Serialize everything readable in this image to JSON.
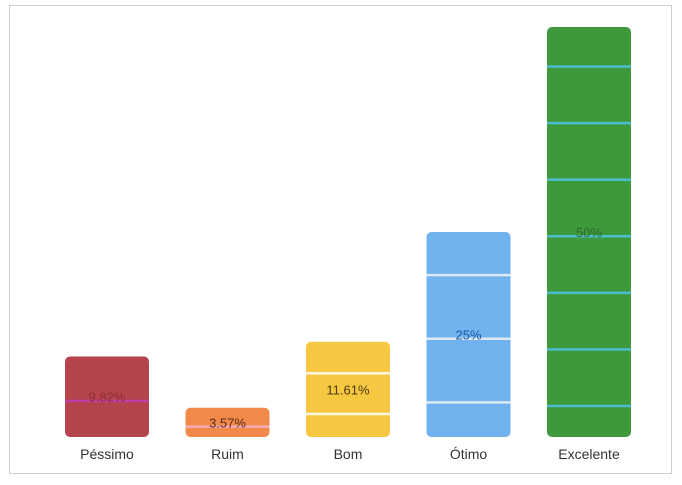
{
  "chart_data": {
    "type": "bar",
    "categories": [
      "Péssimo",
      "Ruim",
      "Bom",
      "Ótimo",
      "Excelente"
    ],
    "values": [
      9.82,
      3.57,
      11.61,
      25,
      50
    ],
    "value_labels": [
      "9.82%",
      "3.57%",
      "11.61%",
      "25%",
      "50%"
    ],
    "ylim": [
      0,
      50
    ],
    "grid": false,
    "colors": [
      "#b5434c",
      "#f0894a",
      "#f6c842",
      "#6fb2ee",
      "#3d9a3c"
    ],
    "stripe_colors": [
      "#c43db5",
      "#f7b0c8",
      "#ffffff",
      "#f2f2f2",
      "#4fc3e8"
    ],
    "label_colors": [
      "#8e2f37",
      "#5a2b18",
      "#4a3a10",
      "#1f58a8",
      "#2d6b2c"
    ]
  }
}
